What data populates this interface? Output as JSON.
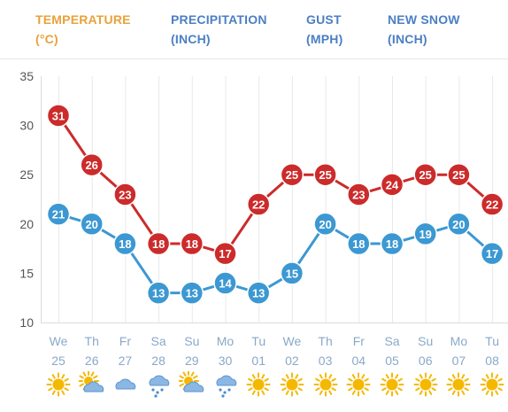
{
  "tabs": [
    {
      "line1": "TEMPERATURE",
      "line2": "(°C)",
      "active": true
    },
    {
      "line1": "PRECIPITATION",
      "line2": "(INCH)",
      "active": false
    },
    {
      "line1": "GUST",
      "line2": "(MPH)",
      "active": false
    },
    {
      "line1": "NEW SNOW",
      "line2": "(INCH)",
      "active": false
    }
  ],
  "colors": {
    "active_tab": "#e8a23a",
    "inactive_tab": "#4b7fc4",
    "high_series": "#cc2b2b",
    "low_series": "#3c98d2",
    "axis_text": "#555555",
    "day_label": "#8aa8c8",
    "sun": "#f5b800",
    "cloud": "#8ab7e3",
    "rain": "#4a8dd1"
  },
  "chart_data": {
    "type": "line",
    "ylim": [
      10,
      35
    ],
    "yticks": [
      10,
      15,
      20,
      25,
      30,
      35
    ],
    "grid": true,
    "categories": [
      {
        "day": "We",
        "date": "25"
      },
      {
        "day": "Th",
        "date": "26"
      },
      {
        "day": "Fr",
        "date": "27"
      },
      {
        "day": "Sa",
        "date": "28"
      },
      {
        "day": "Su",
        "date": "29"
      },
      {
        "day": "Mo",
        "date": "30"
      },
      {
        "day": "Tu",
        "date": "01"
      },
      {
        "day": "We",
        "date": "02"
      },
      {
        "day": "Th",
        "date": "03"
      },
      {
        "day": "Fr",
        "date": "04"
      },
      {
        "day": "Sa",
        "date": "05"
      },
      {
        "day": "Su",
        "date": "06"
      },
      {
        "day": "Mo",
        "date": "07"
      },
      {
        "day": "Tu",
        "date": "08"
      }
    ],
    "series": [
      {
        "values": [
          31,
          26,
          23,
          18,
          18,
          17,
          22,
          25,
          25,
          23,
          24,
          25,
          25,
          22
        ]
      },
      {
        "values": [
          21,
          20,
          18,
          13,
          13,
          14,
          13,
          15,
          20,
          18,
          18,
          19,
          20,
          17
        ]
      }
    ],
    "weather_icons": [
      "sun-icon",
      "partly-cloudy-icon",
      "cloud-icon",
      "rain-cloud-icon",
      "partly-cloudy-icon",
      "rain-cloud-icon",
      "sun-icon",
      "sun-icon",
      "sun-icon",
      "sun-icon",
      "sun-icon",
      "sun-icon",
      "sun-icon",
      "sun-icon"
    ]
  }
}
